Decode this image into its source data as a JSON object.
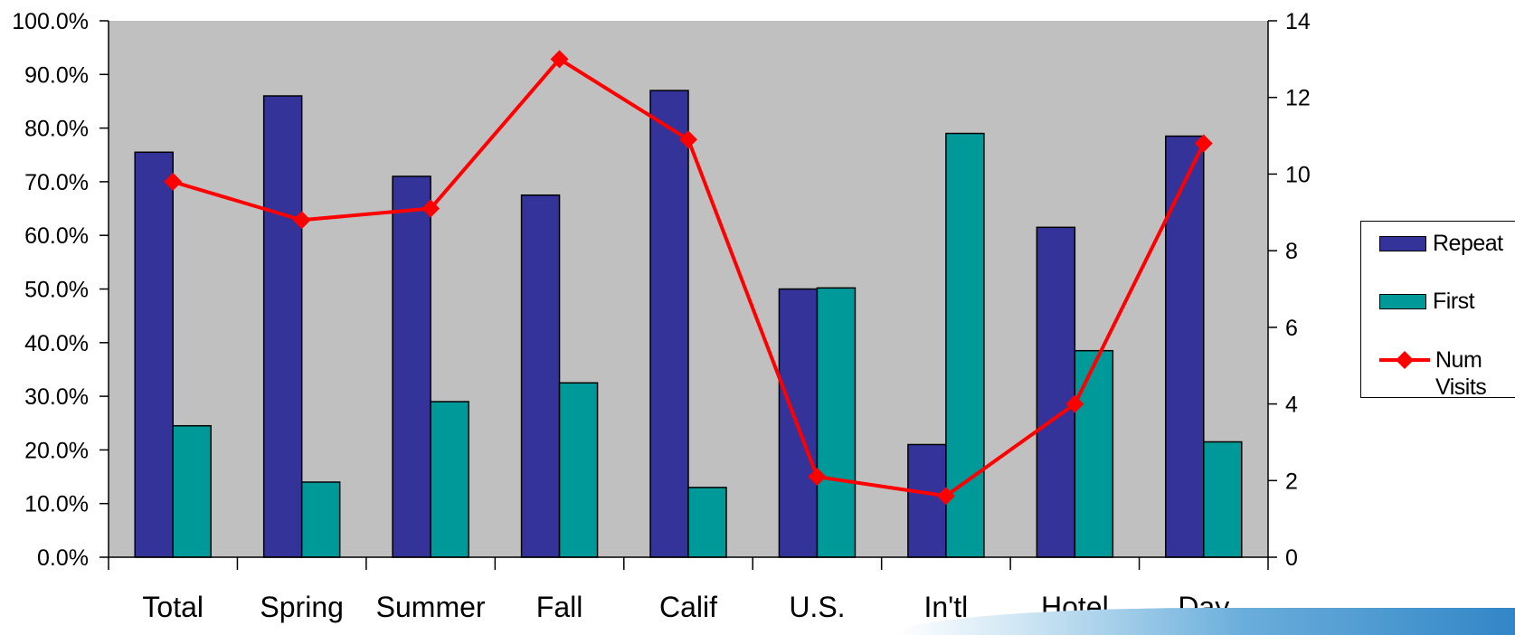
{
  "chart_data": {
    "type": "bar",
    "categories": [
      "Total",
      "Spring",
      "Summer",
      "Fall",
      "Calif",
      "U.S.",
      "In'tl",
      "Hotel",
      "Day"
    ],
    "series": [
      {
        "name": "Repeat",
        "type": "bar",
        "axis": "left",
        "color": "#333399",
        "values": [
          75.5,
          86.0,
          71.0,
          67.5,
          87.0,
          50.0,
          21.0,
          61.5,
          78.5
        ]
      },
      {
        "name": "First",
        "type": "bar",
        "axis": "left",
        "color": "#009999",
        "values": [
          24.5,
          14.0,
          29.0,
          32.5,
          13.0,
          50.2,
          79.0,
          38.5,
          21.5
        ]
      },
      {
        "name": "Num Visits",
        "type": "line",
        "axis": "right",
        "color": "#ff0000",
        "marker": "diamond",
        "values": [
          9.8,
          8.8,
          9.1,
          13.0,
          10.9,
          2.1,
          1.6,
          4.0,
          10.8
        ]
      }
    ],
    "y_left": {
      "ylim": [
        0,
        100
      ],
      "ticks": [
        "0.0%",
        "10.0%",
        "20.0%",
        "30.0%",
        "40.0%",
        "50.0%",
        "60.0%",
        "70.0%",
        "80.0%",
        "90.0%",
        "100.0%"
      ]
    },
    "y_right": {
      "ylim": [
        0,
        14
      ],
      "ticks": [
        "0",
        "2",
        "4",
        "6",
        "8",
        "10",
        "12",
        "14"
      ]
    },
    "plot_background": "#c0c0c0",
    "grid": false,
    "legend_position": "right"
  }
}
